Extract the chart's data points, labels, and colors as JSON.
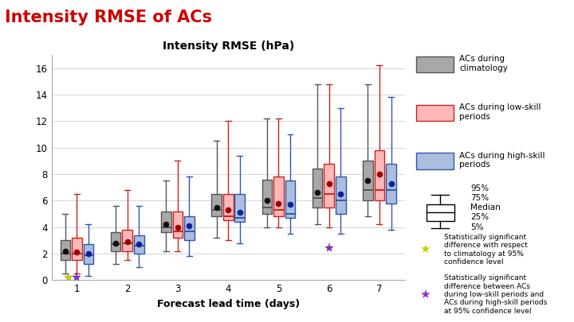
{
  "title": "Intensity RMSE of ACs",
  "subtitle": "Intensity RMSE (hPa)",
  "xlabel": "Forecast lead time (days)",
  "lead_times": [
    1,
    2,
    3,
    4,
    5,
    6,
    7
  ],
  "gray": {
    "p5": [
      0.5,
      1.2,
      2.2,
      3.2,
      4.0,
      4.2,
      4.8
    ],
    "p25": [
      1.5,
      2.2,
      3.6,
      4.8,
      5.0,
      5.5,
      6.0
    ],
    "med": [
      2.0,
      2.7,
      4.0,
      5.3,
      5.5,
      6.2,
      6.8
    ],
    "p75": [
      3.0,
      3.6,
      5.2,
      6.5,
      7.6,
      8.4,
      9.0
    ],
    "p95": [
      5.0,
      5.6,
      7.5,
      10.5,
      12.2,
      14.8,
      14.8
    ],
    "mean": [
      2.2,
      2.8,
      4.2,
      5.5,
      6.0,
      6.6,
      7.5
    ]
  },
  "red": {
    "p5": [
      0.5,
      1.5,
      2.2,
      3.0,
      4.0,
      4.0,
      4.2
    ],
    "p25": [
      1.5,
      2.2,
      3.2,
      4.5,
      4.8,
      5.5,
      6.0
    ],
    "med": [
      2.0,
      2.8,
      3.7,
      4.8,
      5.3,
      6.5,
      6.8
    ],
    "p75": [
      3.2,
      3.8,
      5.2,
      6.5,
      7.8,
      8.8,
      9.8
    ],
    "p95": [
      6.5,
      6.8,
      9.0,
      12.0,
      12.2,
      14.8,
      16.2
    ],
    "mean": [
      2.1,
      2.9,
      4.0,
      5.3,
      5.8,
      7.3,
      8.0
    ]
  },
  "blue": {
    "p5": [
      0.3,
      1.0,
      1.8,
      2.8,
      3.5,
      3.5,
      3.8
    ],
    "p25": [
      1.2,
      2.0,
      3.0,
      4.4,
      4.7,
      5.0,
      5.8
    ],
    "med": [
      1.9,
      2.6,
      3.7,
      4.7,
      5.0,
      6.0,
      6.8
    ],
    "p75": [
      2.7,
      3.4,
      4.8,
      6.5,
      7.5,
      7.8,
      8.8
    ],
    "p95": [
      4.2,
      5.6,
      7.8,
      9.4,
      11.0,
      13.0,
      13.8
    ],
    "mean": [
      2.0,
      2.7,
      4.1,
      5.1,
      5.7,
      6.5,
      7.3
    ]
  },
  "colors": {
    "gray_face": "#a8a8a8",
    "gray_edge": "#555555",
    "red_face": "#ffb8b8",
    "red_edge": "#cc2222",
    "blue_face": "#aabfdf",
    "blue_edge": "#3355aa"
  },
  "ylim": [
    0,
    17
  ],
  "yticks": [
    0,
    2,
    4,
    6,
    8,
    10,
    12,
    14,
    16
  ],
  "title_color": "#cc0000",
  "title_fontsize": 15,
  "subtitle_fontsize": 10,
  "label_fontsize": 9,
  "tick_fontsize": 8.5
}
